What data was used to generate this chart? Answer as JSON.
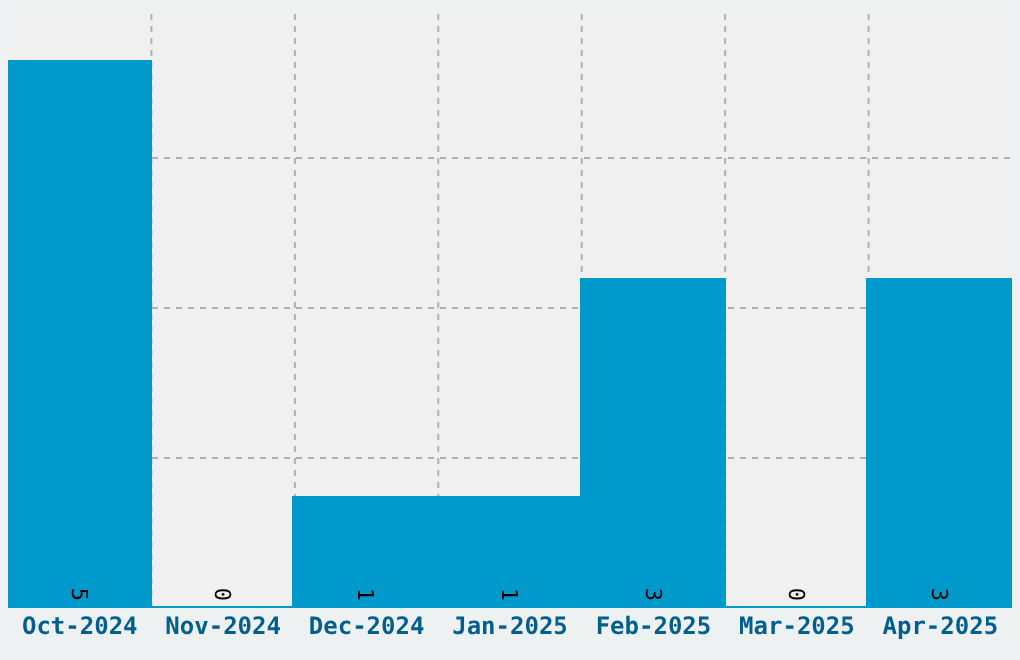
{
  "chart_data": {
    "type": "bar",
    "categories": [
      "Oct-2024",
      "Nov-2024",
      "Dec-2024",
      "Jan-2025",
      "Feb-2025",
      "Mar-2025",
      "Apr-2025"
    ],
    "values": [
      5,
      0,
      1,
      1,
      3,
      0,
      3
    ],
    "color": "#0099cc",
    "ylim": [
      0,
      5.5
    ],
    "yticks": [
      {
        "value": 1.375,
        "label": null
      },
      {
        "value": 2.75,
        "label": null
      },
      {
        "value": 4.125,
        "label": null
      }
    ],
    "tick_labels": "x",
    "data_labels": true,
    "grid": true
  }
}
